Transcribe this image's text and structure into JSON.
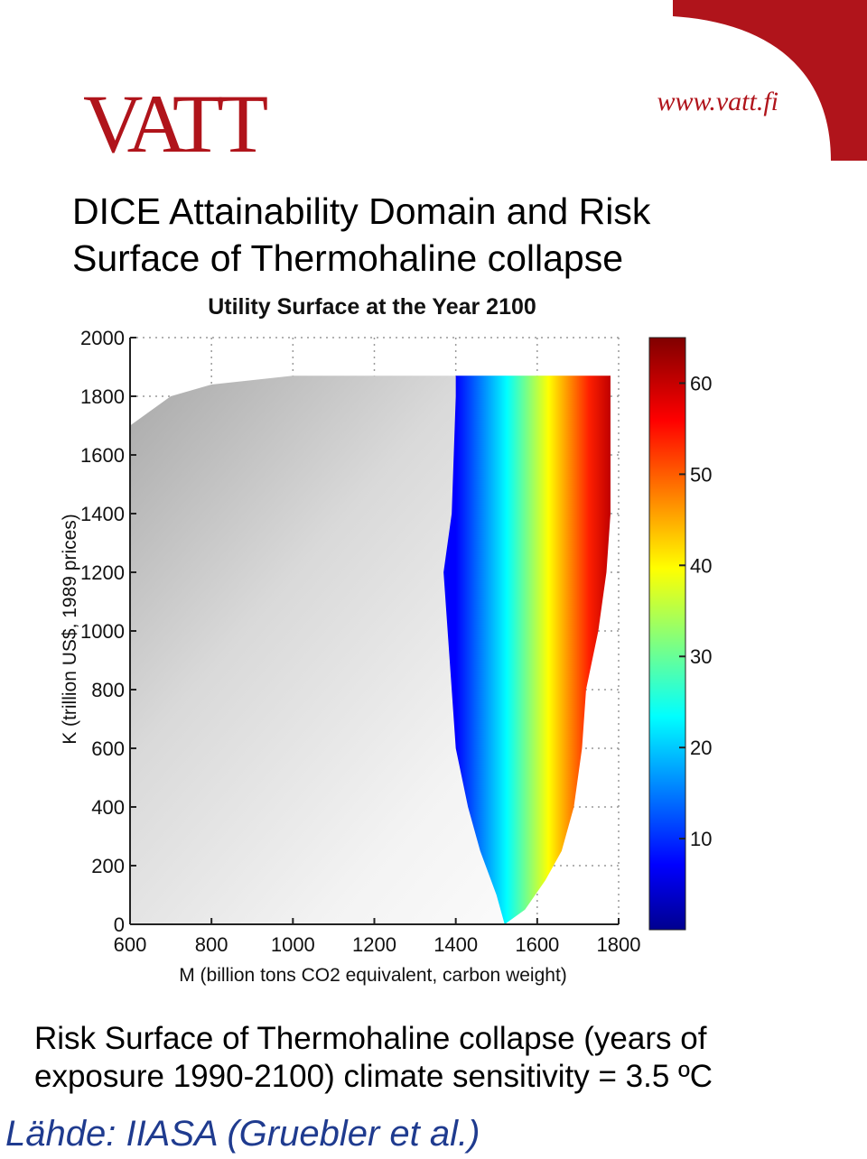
{
  "header": {
    "logo_text": "VATT",
    "url": "www.vatt.fi",
    "accent_color": "#b0141b"
  },
  "slide": {
    "title_line1": "DICE Attainability Domain and Risk",
    "title_line2": "Surface of Thermohaline collapse",
    "caption_line1": "Risk Surface of Thermohaline collapse (years of",
    "caption_line2": "exposure 1990-2100) climate sensitivity = 3.5 ºC",
    "source": "Lähde: IIASA (Gruebler et al.)"
  },
  "chart_data": {
    "type": "heatmap",
    "title": "Utility Surface at the Year 2100",
    "xlabel": "M (billion tons CO2 equivalent, carbon weight)",
    "ylabel": "K (trillion US$, 1989 prices)",
    "xlim": [
      600,
      1800
    ],
    "ylim": [
      0,
      2000
    ],
    "x_ticks": [
      600,
      800,
      1000,
      1200,
      1400,
      1600,
      1800
    ],
    "y_ticks": [
      0,
      200,
      400,
      600,
      800,
      1000,
      1200,
      1400,
      1600,
      1800,
      2000
    ],
    "grid": true,
    "colorbar": {
      "range": [
        0,
        65
      ],
      "ticks": [
        10,
        20,
        30,
        40,
        50,
        60
      ],
      "colormap": "jet"
    },
    "domain_boundary": {
      "top_edge_K": [
        [
          600,
          1700
        ],
        [
          650,
          1750
        ],
        [
          700,
          1800
        ],
        [
          800,
          1840
        ],
        [
          1000,
          1870
        ],
        [
          1200,
          1870
        ],
        [
          1400,
          1870
        ],
        [
          1600,
          1870
        ],
        [
          1780,
          1870
        ]
      ],
      "right_edge_M": [
        [
          1870,
          1780
        ],
        [
          1600,
          1780
        ],
        [
          1400,
          1780
        ],
        [
          1200,
          1770
        ],
        [
          1000,
          1750
        ],
        [
          800,
          1720
        ],
        [
          600,
          1710
        ],
        [
          400,
          1690
        ],
        [
          250,
          1660
        ],
        [
          150,
          1620
        ],
        [
          50,
          1570
        ],
        [
          0,
          1520
        ]
      ]
    },
    "risk_onset_M": [
      [
        1800,
        1400
      ],
      [
        1600,
        1395
      ],
      [
        1400,
        1390
      ],
      [
        1200,
        1370
      ],
      [
        1000,
        1380
      ],
      [
        800,
        1390
      ],
      [
        600,
        1400
      ],
      [
        400,
        1430
      ],
      [
        250,
        1460
      ],
      [
        100,
        1500
      ],
      [
        0,
        1520
      ]
    ],
    "risk_gradient_width_M": 230
  }
}
